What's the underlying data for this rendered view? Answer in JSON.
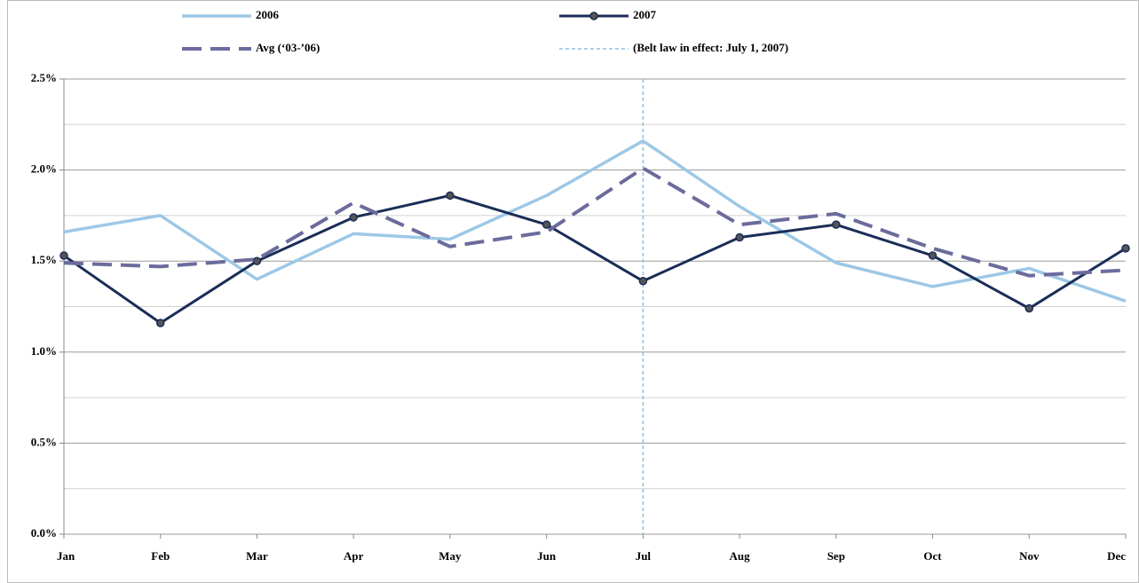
{
  "chart_data": {
    "type": "line",
    "categories": [
      "Jan",
      "Feb",
      "Mar",
      "Apr",
      "May",
      "Jun",
      "Jul",
      "Aug",
      "Sep",
      "Oct",
      "Nov",
      "Dec"
    ],
    "series": [
      {
        "name": "2006",
        "color": "#9dc8e6",
        "style": "solid",
        "marker": false,
        "values": [
          1.66,
          1.75,
          1.4,
          1.65,
          1.62,
          1.86,
          2.16,
          1.8,
          1.49,
          1.36,
          1.46,
          1.28
        ]
      },
      {
        "name": "2007",
        "color": "#1a2d57",
        "style": "solid",
        "marker": true,
        "values": [
          1.53,
          1.16,
          1.5,
          1.74,
          1.86,
          1.7,
          1.39,
          1.63,
          1.7,
          1.53,
          1.24,
          1.57
        ]
      },
      {
        "name": "Avg (‘03-’06)",
        "color": "#6b6b9c",
        "style": "dashed",
        "marker": false,
        "values": [
          1.49,
          1.47,
          1.51,
          1.82,
          1.58,
          1.66,
          2.01,
          1.7,
          1.76,
          1.57,
          1.42,
          1.45
        ]
      }
    ],
    "vline": {
      "name": "(Belt law in effect: July 1, 2007)",
      "category": "Jul",
      "color": "#8fbfe0"
    },
    "ylim": [
      0,
      2.5
    ],
    "yticks": [
      {
        "value": 0,
        "label": "0.0%"
      },
      {
        "value": 0.5,
        "label": "0.5%"
      },
      {
        "value": 1,
        "label": "1.0%"
      },
      {
        "value": 1.5,
        "label": "1.5%"
      },
      {
        "value": 2,
        "label": "2.0%"
      },
      {
        "value": 2.5,
        "label": "2.5%"
      }
    ],
    "minor_yticks": [
      0.25,
      0.75,
      1.25,
      1.75,
      2.25
    ],
    "grid": true,
    "legend": "top"
  }
}
